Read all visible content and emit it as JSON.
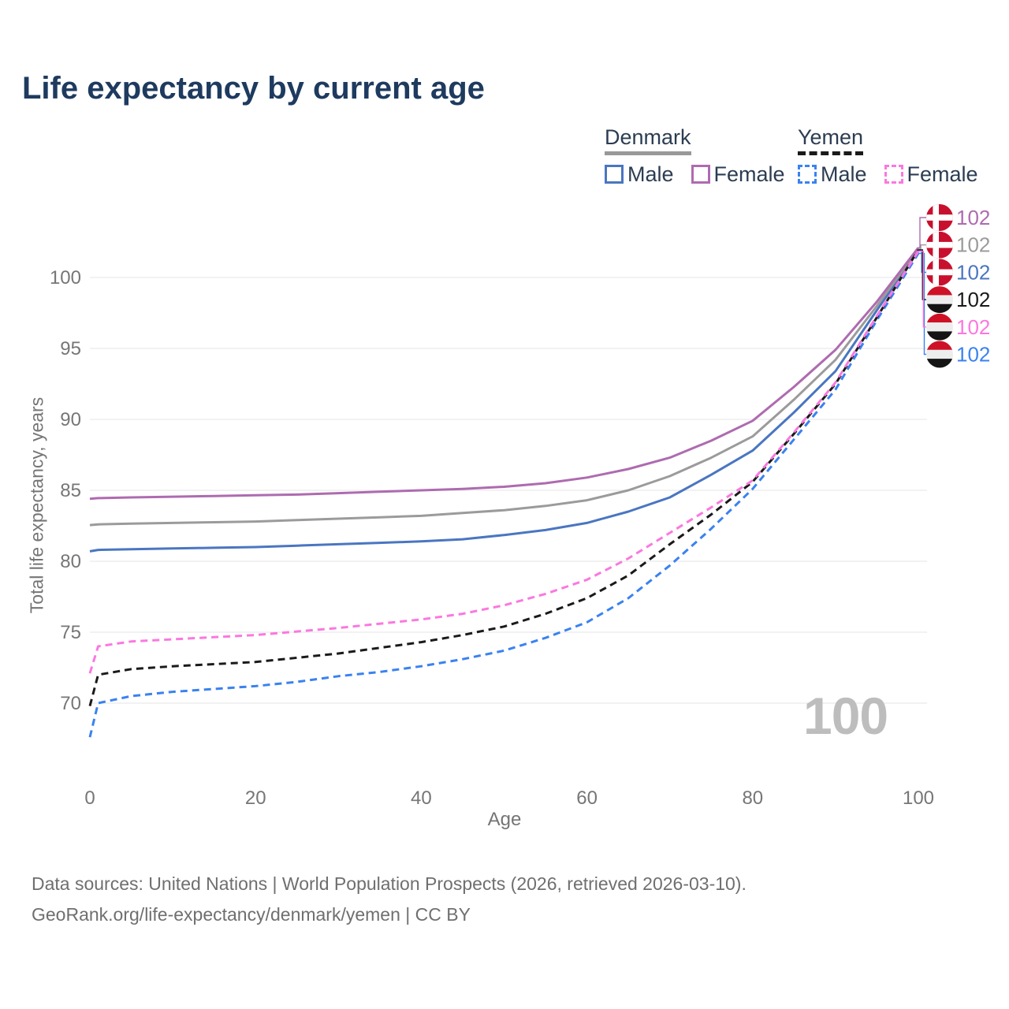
{
  "title": "Life expectancy by current age",
  "legend": {
    "groups": [
      {
        "name": "Denmark",
        "line_style": "solid",
        "underline_color": "#999999",
        "items": [
          {
            "label": "Male",
            "color": "#4a76c1",
            "dashed": false
          },
          {
            "label": "Female",
            "color": "#ae6bb0",
            "dashed": false
          }
        ]
      },
      {
        "name": "Yemen",
        "line_style": "dashed",
        "underline_color": "#1a1a1a",
        "items": [
          {
            "label": "Male",
            "color": "#3a82f0",
            "dashed": true
          },
          {
            "label": "Female",
            "color": "#fb78df",
            "dashed": true
          }
        ]
      }
    ]
  },
  "age_counter_watermark": "100",
  "footer": {
    "line1": "Data sources: United Nations | World Population Prospects (2026, retrieved 2026-03-10).",
    "line2": "GeoRank.org/life-expectancy/denmark/yemen | CC BY"
  },
  "chart_data": {
    "type": "line",
    "title": "Life expectancy by current age",
    "xlabel": "Age",
    "ylabel": "Total life expectancy, years",
    "xlim": [
      0,
      100
    ],
    "ylim": [
      66,
      103
    ],
    "xticks": [
      0,
      20,
      40,
      60,
      80,
      100
    ],
    "yticks": [
      70,
      75,
      80,
      85,
      90,
      95,
      100
    ],
    "grid": "horizontal",
    "legend_position": "top-right",
    "ages": [
      0,
      1,
      5,
      10,
      15,
      20,
      25,
      30,
      35,
      40,
      45,
      50,
      55,
      60,
      65,
      70,
      75,
      80,
      85,
      90,
      95,
      100
    ],
    "series": [
      {
        "name": "Denmark Male",
        "country": "Denmark",
        "sex": "Male",
        "color": "#4a76c1",
        "dash": false,
        "flag": "denmark",
        "end_label": "102",
        "row": 2,
        "values": [
          80.7,
          80.8,
          80.85,
          80.9,
          80.95,
          81.0,
          81.1,
          81.2,
          81.3,
          81.4,
          81.55,
          81.85,
          82.2,
          82.7,
          83.5,
          84.5,
          86.1,
          87.8,
          90.5,
          93.4,
          97.7,
          101.9
        ]
      },
      {
        "name": "Denmark Both sexes",
        "country": "Denmark",
        "sex": "Both",
        "color": "#9b9b9b",
        "dash": false,
        "flag": "denmark",
        "end_label": "102",
        "row": 1,
        "values": [
          82.55,
          82.6,
          82.65,
          82.7,
          82.75,
          82.8,
          82.9,
          83.0,
          83.1,
          83.2,
          83.4,
          83.6,
          83.9,
          84.3,
          85.0,
          86.0,
          87.3,
          88.8,
          91.4,
          94.2,
          98.0,
          102.0
        ]
      },
      {
        "name": "Denmark Female",
        "country": "Denmark",
        "sex": "Female",
        "color": "#ae6bb0",
        "dash": false,
        "flag": "denmark",
        "end_label": "102",
        "row": 0,
        "values": [
          84.4,
          84.45,
          84.5,
          84.55,
          84.6,
          84.65,
          84.7,
          84.8,
          84.9,
          85.0,
          85.1,
          85.25,
          85.5,
          85.9,
          86.5,
          87.3,
          88.5,
          89.9,
          92.3,
          94.9,
          98.3,
          102.1
        ]
      },
      {
        "name": "Yemen Male",
        "country": "Yemen",
        "sex": "Male",
        "color": "#3a82f0",
        "dash": true,
        "flag": "yemen",
        "end_label": "102",
        "row": 5,
        "values": [
          67.6,
          70.0,
          70.5,
          70.8,
          71.0,
          71.2,
          71.5,
          71.9,
          72.2,
          72.6,
          73.1,
          73.7,
          74.6,
          75.7,
          77.4,
          79.7,
          82.3,
          85.1,
          88.6,
          92.1,
          97.0,
          101.7
        ]
      },
      {
        "name": "Yemen Both sexes",
        "country": "Yemen",
        "sex": "Both",
        "color": "#1a1a1a",
        "dash": true,
        "flag": "yemen",
        "end_label": "102",
        "row": 3,
        "values": [
          69.8,
          72.0,
          72.4,
          72.6,
          72.75,
          72.9,
          73.2,
          73.5,
          73.9,
          74.3,
          74.8,
          75.4,
          76.3,
          77.4,
          79.0,
          81.2,
          83.3,
          85.6,
          89.0,
          92.5,
          97.2,
          101.95
        ]
      },
      {
        "name": "Yemen Female",
        "country": "Yemen",
        "sex": "Female",
        "color": "#fb78df",
        "dash": true,
        "flag": "yemen",
        "end_label": "102",
        "row": 4,
        "values": [
          72.1,
          74.0,
          74.35,
          74.5,
          74.65,
          74.8,
          75.05,
          75.3,
          75.6,
          75.9,
          76.3,
          76.9,
          77.7,
          78.7,
          80.2,
          82.0,
          83.8,
          85.7,
          89.1,
          92.6,
          97.3,
          101.85
        ]
      }
    ],
    "flag_colors": {
      "denmark": {
        "red": "#c8102e",
        "cross": "#ffffff"
      },
      "yemen": {
        "red": "#ce1126",
        "white": "#ededed",
        "black": "#141414"
      }
    },
    "axis_text_color": "#767676",
    "gridline_color": "#e9e9e9"
  }
}
